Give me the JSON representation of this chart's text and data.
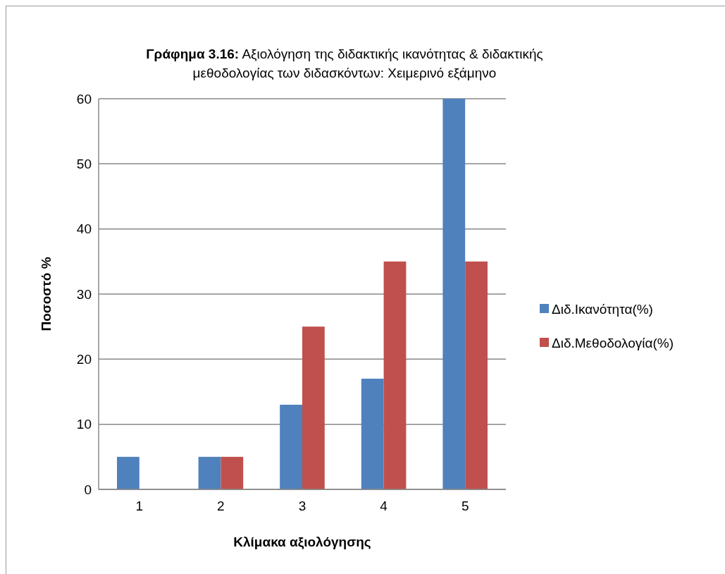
{
  "chart_data": {
    "type": "bar",
    "title": "Γράφημα 3.16: Αξιολόγηση της διδακτικής ικανότητας & διδακτικής μεθοδολογίας των διδασκόντων: Χειμερινό εξάμηνο",
    "xlabel": "Κλίμακα αξιολόγησης",
    "ylabel": "Ποσοστό %",
    "categories": [
      "1",
      "2",
      "3",
      "4",
      "5"
    ],
    "series": [
      {
        "name": "Διδ.Ικανότητα(%)",
        "color": "#4f81bd",
        "values": [
          5,
          5,
          13,
          17,
          60
        ]
      },
      {
        "name": "Διδ.Μεθοδολογία(%)",
        "color": "#c0504d",
        "values": [
          0,
          5,
          25,
          35,
          35
        ]
      }
    ],
    "ylim": [
      0,
      60
    ],
    "yticks": [
      0,
      10,
      20,
      30,
      40,
      50,
      60
    ],
    "grid": "y",
    "legend": "right"
  }
}
